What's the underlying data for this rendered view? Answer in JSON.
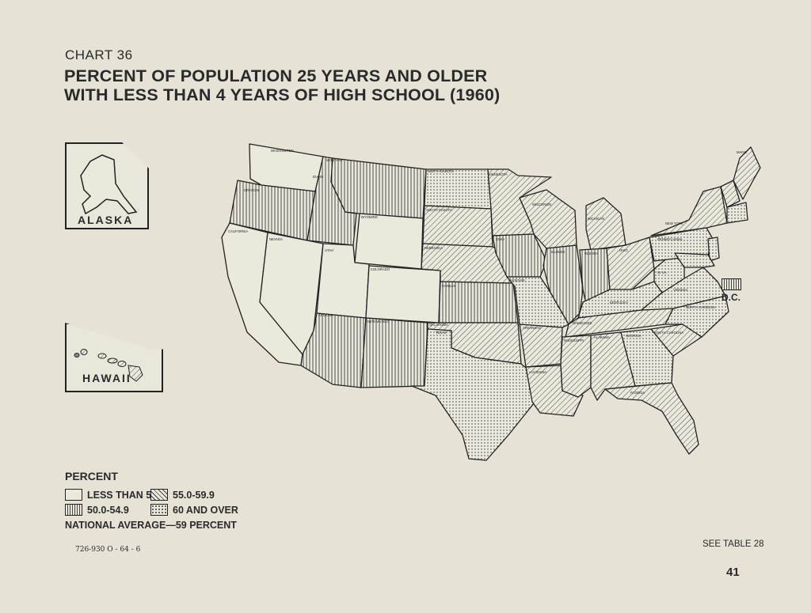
{
  "header": {
    "chart_label": "CHART 36",
    "title_line1": "PERCENT OF POPULATION 25 YEARS AND OLDER",
    "title_line2": "WITH LESS THAN 4 YEARS OF HIGH SCHOOL (1960)"
  },
  "insets": {
    "alaska": "ALASKA",
    "hawaii": "HAWAII"
  },
  "dc_label": "D.C.",
  "legend": {
    "title": "PERCENT",
    "items": [
      {
        "pattern": "blank",
        "label": "LESS THAN 50"
      },
      {
        "pattern": "diagonal",
        "label": "55.0-59.9"
      },
      {
        "pattern": "vertical",
        "label": "50.0-54.9"
      },
      {
        "pattern": "dotted",
        "label": "60 AND OVER"
      }
    ],
    "national_average": "NATIONAL AVERAGE—59 PERCENT"
  },
  "state_labels": {
    "washington": "WASHINGTON",
    "oregon": "OREGON",
    "california": "CALIFORNIA",
    "nevada": "NEVADA",
    "idaho": "IDAHO",
    "montana": "MONTANA",
    "wyoming": "WYOMING",
    "utah": "UTAH",
    "colorado": "COLORADO",
    "arizona": "ARIZONA",
    "new_mexico": "NEW MEXICO",
    "north_dakota": "NORTH DAKOTA",
    "south_dakota": "SOUTH DAKOTA",
    "nebraska": "NEBRASKA",
    "kansas": "KANSAS",
    "oklahoma": "OKLAHOMA",
    "texas": "TEXAS",
    "minnesota": "MINNESOTA",
    "iowa": "IOWA",
    "missouri": "MISSOURI",
    "arkansas": "ARKANSAS",
    "louisiana": "LOUISIANA",
    "wisconsin": "WISCONSIN",
    "illinois": "ILLINOIS",
    "michigan": "MICHIGAN",
    "indiana": "INDIANA",
    "ohio": "OHIO",
    "kentucky": "KENTUCKY",
    "tennessee": "TENNESSEE",
    "mississippi": "MISSISSIPPI",
    "alabama": "ALABAMA",
    "georgia": "GEORGIA",
    "florida": "FLORIDA",
    "south_carolina": "SOUTH CAROLINA",
    "north_carolina": "NORTH CAROLINA",
    "virginia": "VIRGINIA",
    "west_virginia": "W. VA.",
    "pennsylvania": "PENNSYLVANIA",
    "new_york": "NEW YORK",
    "maine": "MAINE"
  },
  "footer": {
    "print_code": "726-930 O - 64 - 6",
    "see_table": "SEE TABLE 28",
    "page_number": "41"
  }
}
